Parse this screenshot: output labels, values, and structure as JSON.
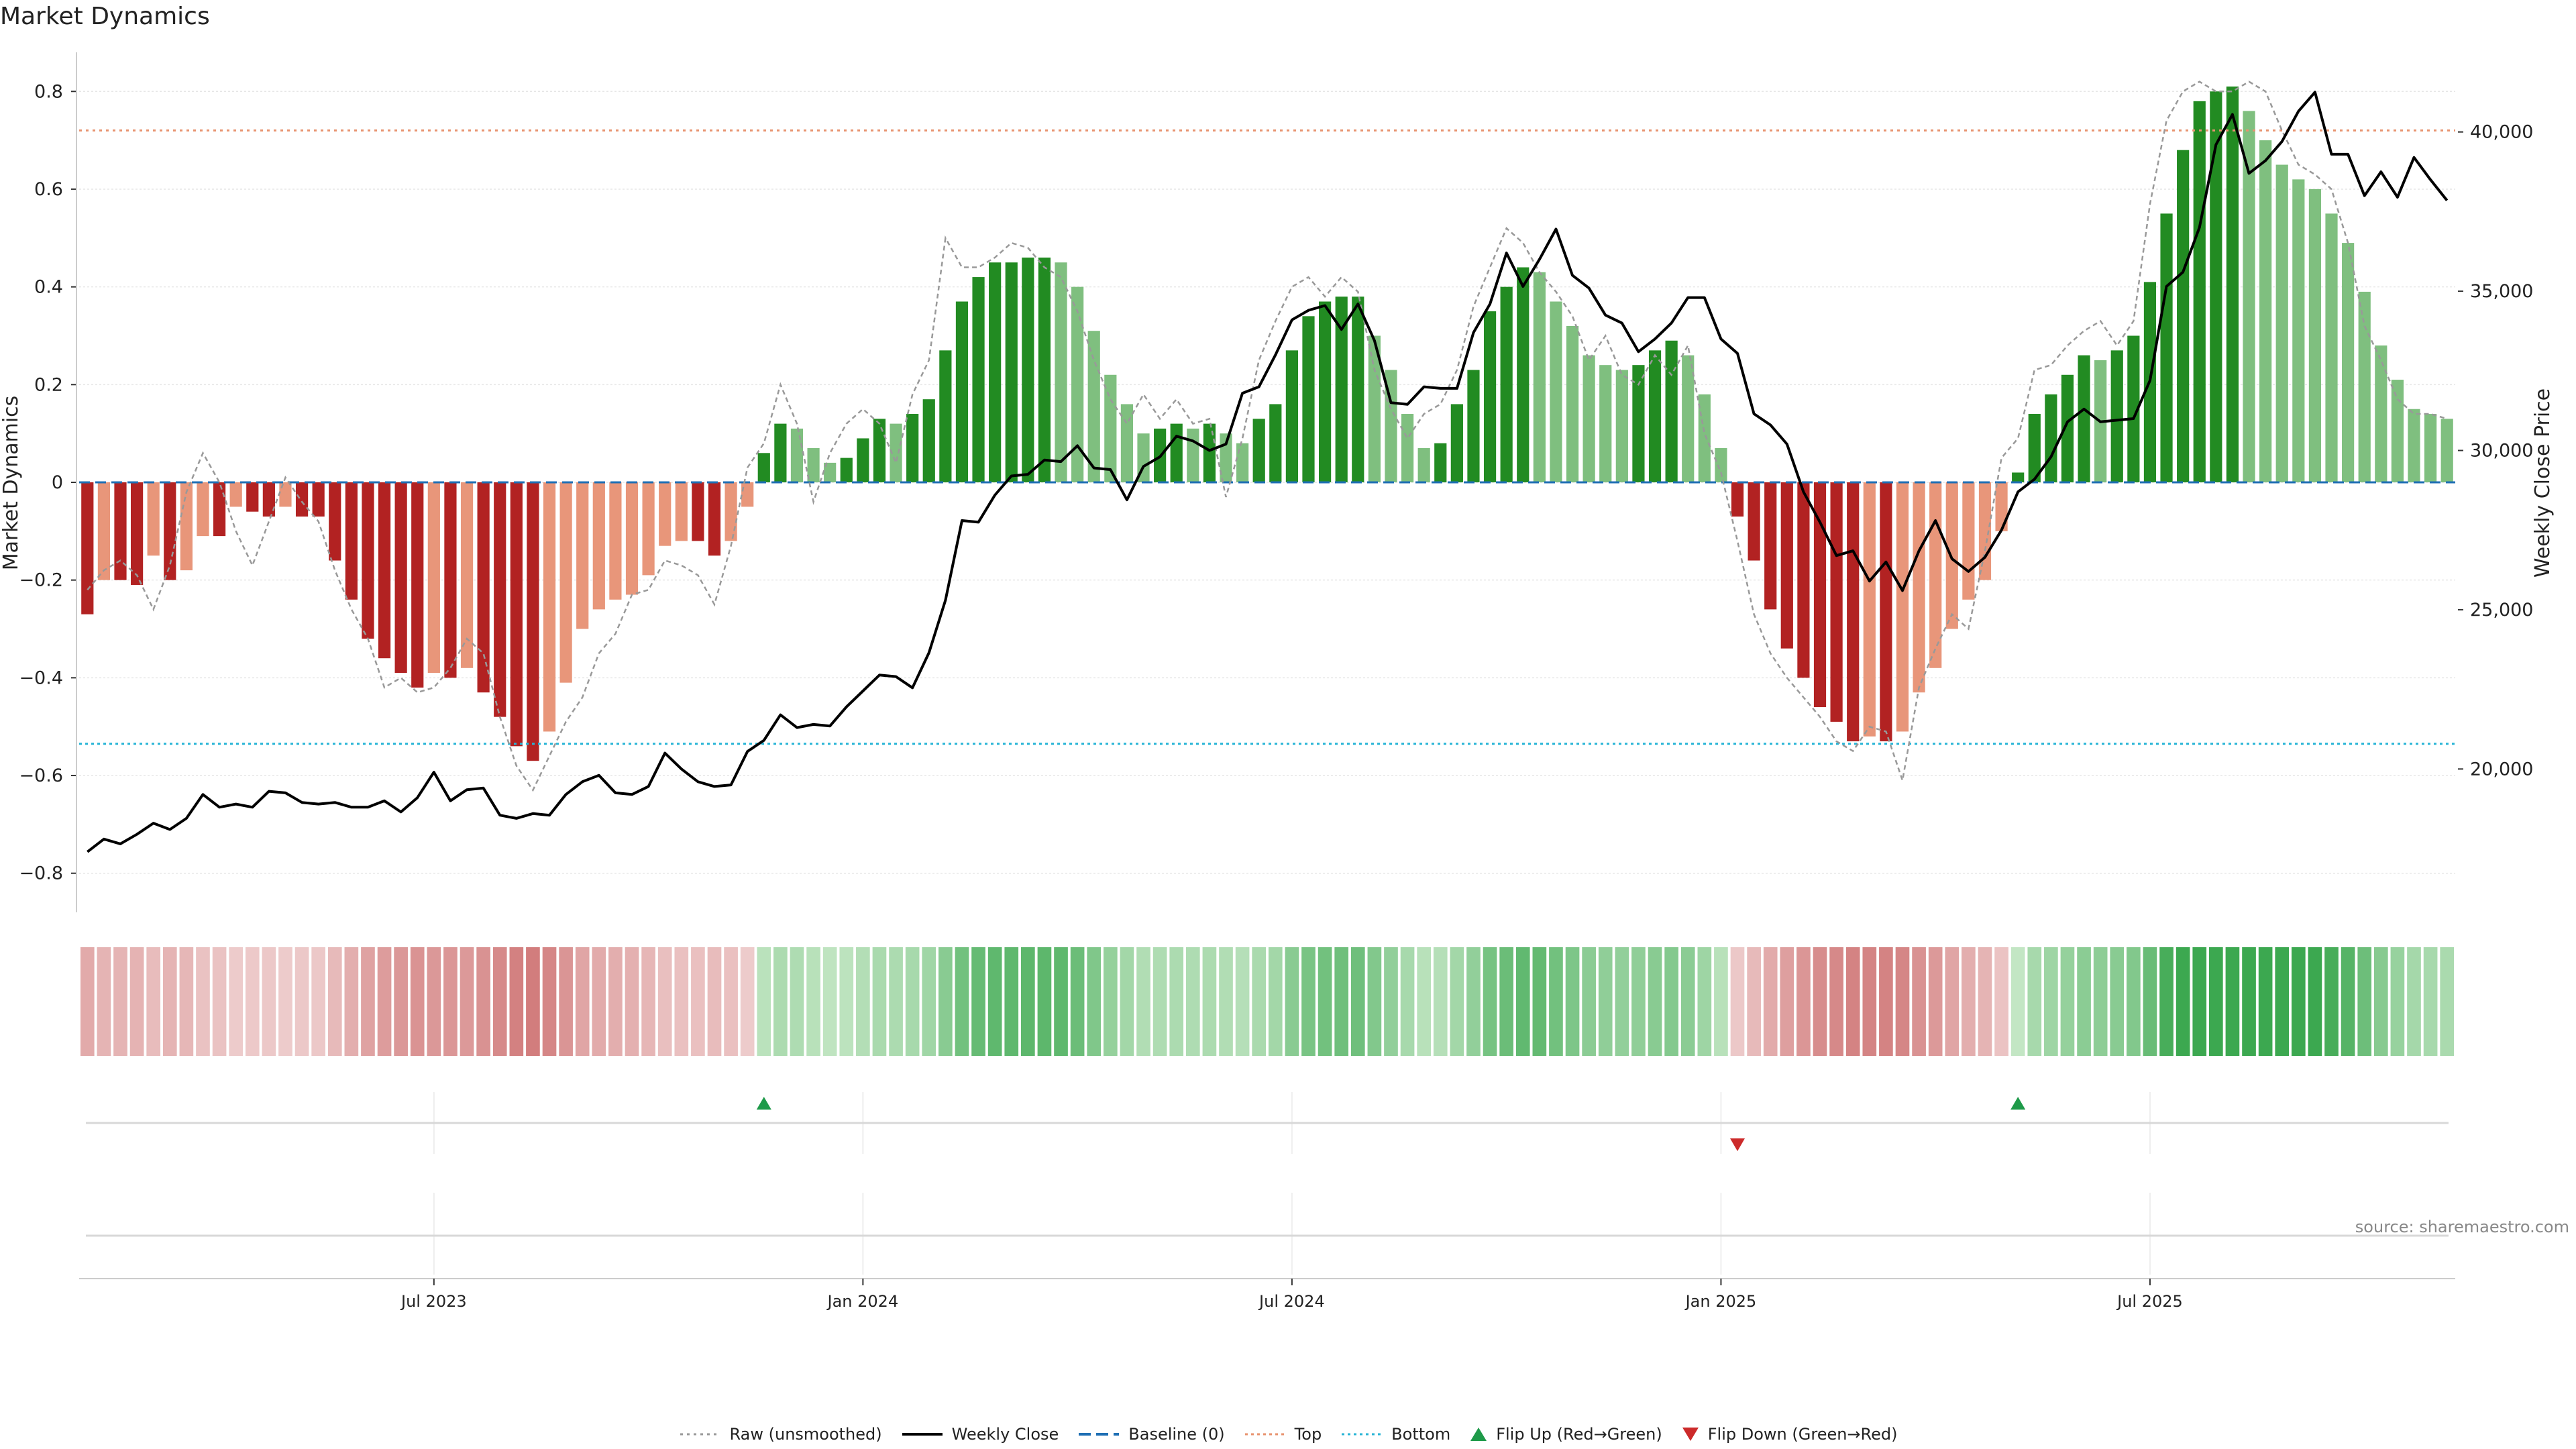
{
  "title": "Market Dynamics",
  "source_text": "source: sharemaestro.com",
  "legend": [
    {
      "label": "Raw (unsmoothed)",
      "icon": "dotted-line-icon",
      "color": "#999999"
    },
    {
      "label": "Weekly Close",
      "icon": "solid-line-icon",
      "color": "#000000"
    },
    {
      "label": "Baseline (0)",
      "icon": "dashed-line-icon",
      "color": "#1f6fb4"
    },
    {
      "label": "Top",
      "icon": "dotted-line-icon",
      "color": "#e8936f"
    },
    {
      "label": "Bottom",
      "icon": "dotted-line-icon",
      "color": "#27b4d6"
    },
    {
      "label": "Flip Up (Red→Green)",
      "icon": "triangle-up-icon",
      "color": "#1e9a49"
    },
    {
      "label": "Flip Down (Green→Red)",
      "icon": "triangle-down-icon",
      "color": "#cc2a2a"
    }
  ],
  "chart_data": {
    "type": "bar",
    "title": "Market Dynamics",
    "ylabel": "Market Dynamics",
    "ylabel_right": "Weekly Close Price",
    "ylim": [
      -0.88,
      0.88
    ],
    "ylim_right": [
      15500,
      42500
    ],
    "yticks": [
      -0.8,
      -0.6,
      -0.4,
      -0.2,
      0,
      0.2,
      0.4,
      0.6,
      0.8
    ],
    "ytick_labels": [
      "−0.8",
      "−0.6",
      "−0.4",
      "−0.2",
      "0",
      "0.2",
      "0.4",
      "0.6",
      "0.8"
    ],
    "yticks_right": [
      20000,
      25000,
      30000,
      35000,
      40000
    ],
    "ytick_labels_right": [
      "20,000",
      "25,000",
      "30,000",
      "35,000",
      "40,000"
    ],
    "x_ticks": [
      "Jul 2023",
      "Jan 2024",
      "Jul 2024",
      "Jan 2025",
      "Jul 2025"
    ],
    "x_tick_positions": [
      21,
      47,
      73,
      99,
      125
    ],
    "top_line": 0.72,
    "bottom_line": -0.535,
    "baseline": 0,
    "grid": true,
    "legend_position": "bottom",
    "colors": {
      "strong_red": "#b22222",
      "weak_red": "#e8967a",
      "strong_green": "#228b22",
      "weak_green": "#7fbf7f",
      "price": "#000000",
      "raw": "#999999",
      "top": "#e8936f",
      "bottom": "#27b4d6",
      "baseline": "#1f6fb4"
    },
    "series": [
      {
        "name": "Market Dynamics",
        "values": [
          -0.27,
          -0.2,
          -0.2,
          -0.21,
          -0.15,
          -0.2,
          -0.18,
          -0.11,
          -0.11,
          -0.05,
          -0.06,
          -0.07,
          -0.05,
          -0.07,
          -0.07,
          -0.16,
          -0.24,
          -0.32,
          -0.36,
          -0.39,
          -0.42,
          -0.39,
          -0.4,
          -0.38,
          -0.43,
          -0.48,
          -0.54,
          -0.57,
          -0.51,
          -0.41,
          -0.3,
          -0.26,
          -0.24,
          -0.23,
          -0.19,
          -0.13,
          -0.12,
          -0.12,
          -0.15,
          -0.12,
          -0.05,
          0.06,
          0.12,
          0.11,
          0.07,
          0.04,
          0.05,
          0.09,
          0.13,
          0.12,
          0.14,
          0.17,
          0.27,
          0.37,
          0.42,
          0.45,
          0.45,
          0.46,
          0.46,
          0.45,
          0.4,
          0.31,
          0.22,
          0.16,
          0.1,
          0.11,
          0.12,
          0.11,
          0.12,
          0.1,
          0.08,
          0.13,
          0.16,
          0.27,
          0.34,
          0.37,
          0.38,
          0.38,
          0.3,
          0.23,
          0.14,
          0.07,
          0.08,
          0.16,
          0.23,
          0.35,
          0.4,
          0.44,
          0.43,
          0.37,
          0.32,
          0.26,
          0.24,
          0.23,
          0.24,
          0.27,
          0.29,
          0.26,
          0.18,
          0.07,
          -0.07,
          -0.16,
          -0.26,
          -0.34,
          -0.4,
          -0.46,
          -0.49,
          -0.53,
          -0.52,
          -0.53,
          -0.51,
          -0.43,
          -0.38,
          -0.3,
          -0.24,
          -0.2,
          -0.1,
          0.02,
          0.14,
          0.18,
          0.22,
          0.26,
          0.25,
          0.27,
          0.3,
          0.41,
          0.55,
          0.68,
          0.78,
          0.8,
          0.81,
          0.76,
          0.7,
          0.65,
          0.62,
          0.6,
          0.55,
          0.49,
          0.39,
          0.28,
          0.21,
          0.15,
          0.14,
          0.13
        ]
      },
      {
        "name": "Raw (unsmoothed)",
        "values": [
          -0.22,
          -0.18,
          -0.16,
          -0.19,
          -0.26,
          -0.17,
          -0.02,
          0.06,
          0.0,
          -0.1,
          -0.17,
          -0.08,
          0.01,
          -0.04,
          -0.08,
          -0.18,
          -0.26,
          -0.32,
          -0.42,
          -0.4,
          -0.43,
          -0.42,
          -0.38,
          -0.32,
          -0.35,
          -0.48,
          -0.58,
          -0.63,
          -0.56,
          -0.49,
          -0.44,
          -0.35,
          -0.31,
          -0.23,
          -0.22,
          -0.16,
          -0.17,
          -0.19,
          -0.25,
          -0.13,
          0.03,
          0.08,
          0.2,
          0.12,
          -0.04,
          0.06,
          0.12,
          0.15,
          0.12,
          0.04,
          0.18,
          0.25,
          0.5,
          0.44,
          0.44,
          0.46,
          0.49,
          0.48,
          0.44,
          0.42,
          0.35,
          0.25,
          0.17,
          0.12,
          0.18,
          0.13,
          0.17,
          0.12,
          0.13,
          -0.03,
          0.09,
          0.25,
          0.33,
          0.4,
          0.42,
          0.38,
          0.42,
          0.39,
          0.23,
          0.15,
          0.09,
          0.14,
          0.16,
          0.23,
          0.36,
          0.44,
          0.52,
          0.49,
          0.43,
          0.39,
          0.34,
          0.25,
          0.3,
          0.22,
          0.2,
          0.26,
          0.22,
          0.28,
          0.1,
          0.02,
          -0.12,
          -0.27,
          -0.35,
          -0.4,
          -0.44,
          -0.48,
          -0.53,
          -0.55,
          -0.5,
          -0.51,
          -0.61,
          -0.42,
          -0.34,
          -0.27,
          -0.3,
          -0.14,
          0.05,
          0.09,
          0.23,
          0.24,
          0.28,
          0.31,
          0.33,
          0.28,
          0.33,
          0.57,
          0.74,
          0.8,
          0.82,
          0.8,
          0.8,
          0.82,
          0.8,
          0.72,
          0.65,
          0.63,
          0.6,
          0.49,
          0.32,
          0.25,
          0.17,
          0.14,
          0.14,
          0.13
        ]
      },
      {
        "name": "Weekly Close",
        "values": [
          17400,
          17800,
          17650,
          17950,
          18300,
          18100,
          18450,
          19200,
          18800,
          18900,
          18800,
          19300,
          19250,
          18950,
          18900,
          18950,
          18800,
          18800,
          19000,
          18650,
          19100,
          19900,
          19000,
          19350,
          19400,
          18550,
          18450,
          18600,
          18550,
          19200,
          19600,
          19800,
          19250,
          19200,
          19450,
          20500,
          20000,
          19600,
          19450,
          19500,
          20550,
          20900,
          21700,
          21300,
          21400,
          21350,
          21950,
          22450,
          22950,
          22900,
          22550,
          23650,
          25300,
          27800,
          27750,
          28600,
          29200,
          29250,
          29700,
          29650,
          30150,
          29450,
          29400,
          28450,
          29500,
          29800,
          30450,
          30300,
          30000,
          30200,
          31800,
          32000,
          33000,
          34100,
          34400,
          34550,
          33800,
          34600,
          33450,
          31500,
          31450,
          32000,
          31950,
          31950,
          33700,
          34600,
          36200,
          35150,
          36000,
          36950,
          35500,
          35100,
          34250,
          34000,
          33100,
          33500,
          34000,
          34800,
          34800,
          33500,
          33050,
          31150,
          30800,
          30200,
          28700,
          27750,
          26700,
          26850,
          25900,
          26500,
          25600,
          26850,
          27800,
          26600,
          26200,
          26650,
          27500,
          28700,
          29100,
          29800,
          30900,
          31300,
          30900,
          30950,
          31000,
          32200,
          35150,
          35600,
          37000,
          39600,
          40550,
          38700,
          39100,
          39700,
          40650,
          41250,
          39300,
          39300,
          38000,
          38750,
          37950,
          39200,
          38500,
          37850
        ]
      }
    ]
  }
}
